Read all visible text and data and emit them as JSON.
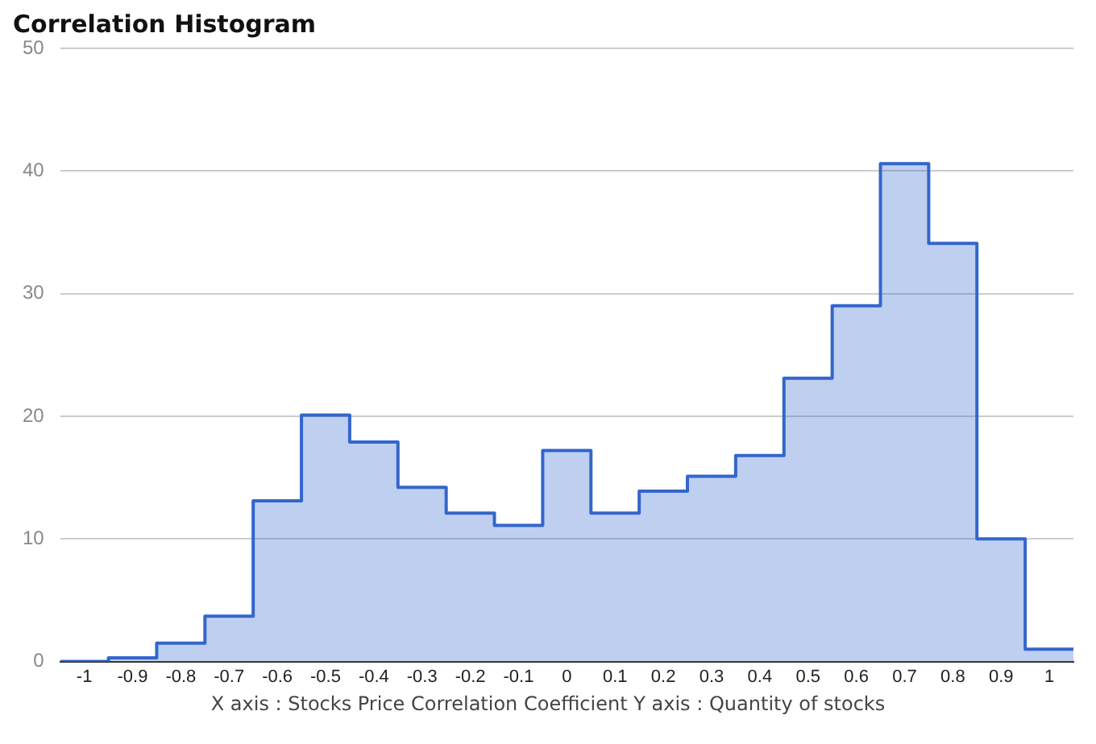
{
  "chart_data": {
    "type": "histogram",
    "title": "Correlation Histogram",
    "xlabel": "X axis : Stocks Price Correlation Coefficient  Y axis : Quantity of stocks",
    "bins": [
      -1.05,
      -0.95,
      -0.85,
      -0.75,
      -0.65,
      -0.55,
      -0.45,
      -0.35,
      -0.25,
      -0.15,
      -0.05,
      0.05,
      0.15,
      0.25,
      0.35,
      0.45,
      0.55,
      0.65,
      0.75,
      0.85,
      0.95,
      1.05
    ],
    "values": [
      0,
      0.3,
      1.5,
      3.7,
      13.1,
      20.1,
      17.9,
      14.2,
      12.1,
      11.1,
      17.2,
      12.1,
      13.9,
      15.1,
      16.8,
      23.1,
      29.0,
      40.6,
      34.1,
      10.0,
      1.0
    ],
    "color": "#3366cc",
    "xlim": [
      -1.05,
      1.05
    ],
    "xticks": [
      -1,
      -0.9,
      -0.8,
      -0.7,
      -0.6,
      -0.5,
      -0.4,
      -0.3,
      -0.2,
      -0.1,
      0,
      0.1,
      0.2,
      0.3,
      0.4,
      0.5,
      0.6,
      0.7,
      0.8,
      0.9,
      1
    ],
    "ylim": [
      0,
      50
    ],
    "yticks": [
      0,
      10,
      20,
      30,
      40,
      50
    ],
    "grid": "y",
    "legend": false
  }
}
